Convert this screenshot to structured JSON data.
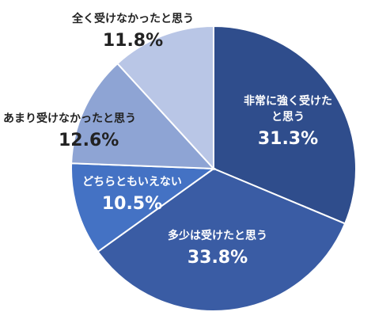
{
  "chart_data": {
    "type": "pie",
    "start_angle_deg": 0,
    "direction": "clockwise",
    "slices": [
      {
        "label": "非常に強く受けたと思う",
        "label_lines": [
          "非常に強く受けた",
          "と思う"
        ],
        "value": 31.3,
        "value_label": "31.3%",
        "color": "#2f4d8c"
      },
      {
        "label": "多少は受けたと思う",
        "label_lines": [
          "多少は受けたと思う"
        ],
        "value": 33.8,
        "value_label": "33.8%",
        "color": "#3a5ca4"
      },
      {
        "label": "どちらともいえない",
        "label_lines": [
          "どちらともいえない"
        ],
        "value": 10.5,
        "value_label": "10.5%",
        "color": "#4472c4"
      },
      {
        "label": "あまり受けなかったと思う",
        "label_lines": [
          "あまり受けなかったと思う"
        ],
        "value": 12.6,
        "value_label": "12.6%",
        "color": "#8ea4d4"
      },
      {
        "label": "全く受けなかったと思う",
        "label_lines": [
          "全く受けなかったと思う"
        ],
        "value": 11.8,
        "value_label": "11.8%",
        "color": "#b9c6e6"
      }
    ]
  }
}
